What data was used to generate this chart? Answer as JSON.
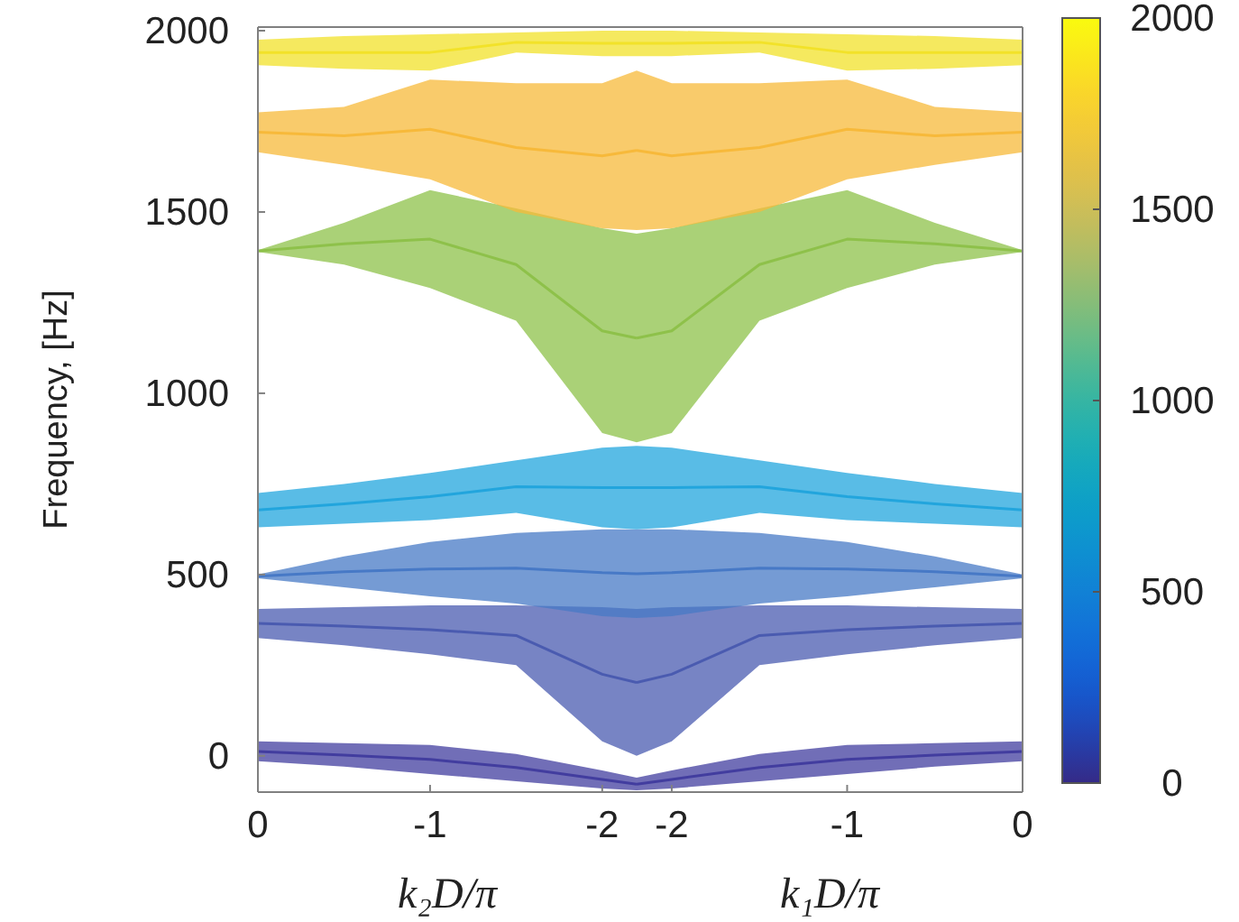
{
  "chart_data": [
    {
      "type": "line",
      "ylabel": "Frequency, [Hz]",
      "xlabel": "k₂D/π",
      "x": [
        0,
        -0.5,
        -1,
        -1.5,
        -2,
        -2.2
      ],
      "xlim": [
        0,
        -2.2
      ],
      "xticks": [
        0,
        -1,
        -2
      ],
      "ylim": [
        -100,
        2010
      ],
      "yticks": [
        0,
        500,
        1000,
        1500,
        2000
      ],
      "grid": false,
      "series": [
        {
          "color": "#423d9f",
          "values": [
            12,
            2,
            -10,
            -32,
            -65,
            -78
          ],
          "lower": [
            -15,
            -30,
            -50,
            -70,
            -90,
            -95
          ],
          "upper": [
            40,
            35,
            30,
            5,
            -40,
            -60
          ]
        },
        {
          "color": "#4a5bb0",
          "values": [
            365,
            358,
            348,
            332,
            225,
            202
          ],
          "lower": [
            325,
            305,
            280,
            250,
            40,
            0
          ],
          "upper": [
            405,
            410,
            415,
            415,
            410,
            405
          ]
        },
        {
          "color": "#4779c6",
          "values": [
            495,
            508,
            515,
            518,
            505,
            502
          ],
          "lower": [
            490,
            465,
            440,
            420,
            385,
            380
          ],
          "upper": [
            500,
            550,
            590,
            615,
            625,
            625
          ]
        },
        {
          "color": "#22a5dd",
          "values": [
            678,
            695,
            715,
            742,
            740,
            740
          ],
          "lower": [
            630,
            640,
            650,
            670,
            630,
            625
          ],
          "upper": [
            725,
            750,
            780,
            815,
            850,
            855
          ]
        },
        {
          "color": "#8ec14a",
          "values": [
            1392,
            1412,
            1425,
            1355,
            1172,
            1152
          ],
          "lower": [
            1390,
            1355,
            1290,
            1200,
            890,
            865
          ],
          "upper": [
            1395,
            1470,
            1560,
            1510,
            1455,
            1440
          ]
        },
        {
          "color": "#f7b93a",
          "values": [
            1720,
            1710,
            1728,
            1678,
            1655,
            1670
          ],
          "lower": [
            1665,
            1630,
            1590,
            1500,
            1455,
            1450
          ],
          "upper": [
            1775,
            1790,
            1865,
            1855,
            1855,
            1890
          ]
        },
        {
          "color": "#f2e229",
          "values": [
            1940,
            1940,
            1940,
            1968,
            1965,
            1965
          ],
          "lower": [
            1905,
            1895,
            1890,
            1940,
            1930,
            1930
          ],
          "upper": [
            1975,
            1985,
            1990,
            1995,
            2000,
            2000
          ]
        }
      ]
    },
    {
      "type": "line",
      "xlabel": "k₁D/π",
      "x": [
        -2.2,
        -2,
        -1.5,
        -1,
        -0.5,
        0
      ],
      "xlim": [
        -2.2,
        0
      ],
      "xticks": [
        -2,
        -1,
        0
      ],
      "ylim": [
        -100,
        2010
      ],
      "tick_labels": "x",
      "grid": false,
      "clim": [
        0,
        2000
      ],
      "cticks": [
        0,
        500,
        1000,
        1500,
        2000
      ],
      "series": [
        {
          "color": "#423d9f",
          "values": [
            -78,
            -65,
            -32,
            -10,
            2,
            12
          ],
          "lower": [
            -95,
            -90,
            -70,
            -50,
            -30,
            -15
          ],
          "upper": [
            -60,
            -40,
            5,
            30,
            35,
            40
          ]
        },
        {
          "color": "#4a5bb0",
          "values": [
            202,
            225,
            332,
            348,
            358,
            365
          ],
          "lower": [
            0,
            40,
            250,
            280,
            305,
            325
          ],
          "upper": [
            405,
            410,
            415,
            415,
            410,
            405
          ]
        },
        {
          "color": "#4779c6",
          "values": [
            502,
            505,
            518,
            515,
            508,
            495
          ],
          "lower": [
            380,
            385,
            420,
            440,
            465,
            490
          ],
          "upper": [
            625,
            625,
            615,
            590,
            550,
            500
          ]
        },
        {
          "color": "#22a5dd",
          "values": [
            740,
            740,
            742,
            715,
            695,
            678
          ],
          "lower": [
            625,
            630,
            670,
            650,
            640,
            630
          ],
          "upper": [
            855,
            850,
            815,
            780,
            750,
            725
          ]
        },
        {
          "color": "#8ec14a",
          "values": [
            1152,
            1172,
            1355,
            1425,
            1412,
            1392
          ],
          "lower": [
            865,
            890,
            1200,
            1290,
            1355,
            1390
          ],
          "upper": [
            1440,
            1455,
            1510,
            1560,
            1470,
            1395
          ]
        },
        {
          "color": "#f7b93a",
          "values": [
            1670,
            1655,
            1678,
            1728,
            1710,
            1720
          ],
          "lower": [
            1450,
            1455,
            1500,
            1590,
            1630,
            1665
          ],
          "upper": [
            1890,
            1855,
            1855,
            1865,
            1790,
            1775
          ]
        },
        {
          "color": "#f2e229",
          "values": [
            1965,
            1965,
            1968,
            1940,
            1940,
            1940
          ],
          "lower": [
            1930,
            1930,
            1940,
            1890,
            1895,
            1905
          ],
          "upper": [
            2000,
            2000,
            1995,
            1990,
            1985,
            1975
          ]
        }
      ]
    }
  ]
}
